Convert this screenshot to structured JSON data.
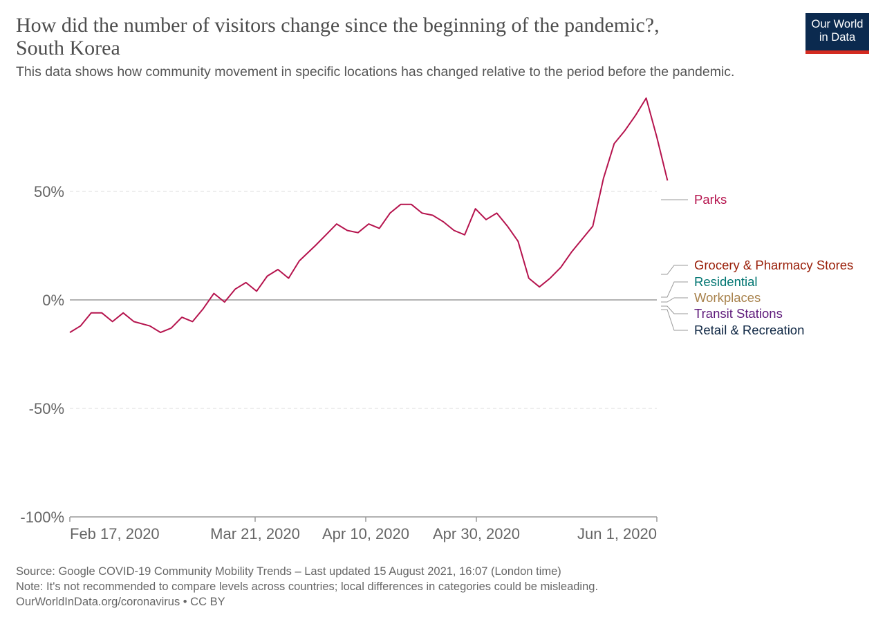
{
  "header": {
    "title": "How did the number of visitors change since the beginning of the pandemic?, South Korea",
    "subtitle": "This data shows how community movement in specific locations has changed relative to the period before the pandemic."
  },
  "logo": {
    "line1": "Our World",
    "line2": "in Data"
  },
  "footer": {
    "source": "Source: Google COVID-19 Community Mobility Trends – Last updated 15 August 2021, 16:07 (London time)",
    "note": "Note: It's not recommended to compare levels across countries; local differences in categories could be misleading.",
    "credit": "OurWorldInData.org/coronavirus • CC BY"
  },
  "chart_data": {
    "type": "line",
    "title": "How did the number of visitors change since the beginning of the pandemic?, South Korea",
    "xlabel": "",
    "ylabel": "",
    "x_range": [
      "2020-02-15",
      "2020-06-05"
    ],
    "ylim": [
      -100,
      100
    ],
    "y_ticks": [
      {
        "value": 50,
        "label": "50%"
      },
      {
        "value": 0,
        "label": "0%"
      },
      {
        "value": -50,
        "label": "-50%"
      },
      {
        "value": -100,
        "label": "-100%"
      }
    ],
    "x_ticks": [
      {
        "date": "2020-02-17",
        "label": "Feb 17, 2020"
      },
      {
        "date": "2020-03-21",
        "label": "Mar 21, 2020"
      },
      {
        "date": "2020-04-10",
        "label": "Apr 10, 2020"
      },
      {
        "date": "2020-04-30",
        "label": "Apr 30, 2020"
      },
      {
        "date": "2020-06-01",
        "label": "Jun 1, 2020"
      }
    ],
    "grid": "horizontal dashed",
    "legend": "right, end-of-line labels",
    "series": [
      {
        "name": "Parks",
        "color": "#b5134d",
        "points": [
          [
            "2020-02-15",
            -15
          ],
          [
            "2020-02-17",
            -12
          ],
          [
            "2020-02-19",
            -6
          ],
          [
            "2020-02-21",
            -6
          ],
          [
            "2020-02-23",
            -10
          ],
          [
            "2020-02-25",
            -6
          ],
          [
            "2020-02-27",
            -10
          ],
          [
            "2020-03-01",
            -12
          ],
          [
            "2020-03-03",
            -15
          ],
          [
            "2020-03-05",
            -13
          ],
          [
            "2020-03-07",
            -8
          ],
          [
            "2020-03-09",
            -10
          ],
          [
            "2020-03-11",
            -4
          ],
          [
            "2020-03-13",
            3
          ],
          [
            "2020-03-15",
            -1
          ],
          [
            "2020-03-17",
            5
          ],
          [
            "2020-03-19",
            8
          ],
          [
            "2020-03-21",
            4
          ],
          [
            "2020-03-23",
            11
          ],
          [
            "2020-03-25",
            14
          ],
          [
            "2020-03-27",
            10
          ],
          [
            "2020-03-29",
            18
          ],
          [
            "2020-04-01",
            25
          ],
          [
            "2020-04-03",
            30
          ],
          [
            "2020-04-05",
            35
          ],
          [
            "2020-04-07",
            32
          ],
          [
            "2020-04-09",
            31
          ],
          [
            "2020-04-11",
            35
          ],
          [
            "2020-04-13",
            33
          ],
          [
            "2020-04-15",
            40
          ],
          [
            "2020-04-17",
            44
          ],
          [
            "2020-04-19",
            44
          ],
          [
            "2020-04-21",
            40
          ],
          [
            "2020-04-23",
            39
          ],
          [
            "2020-04-25",
            36
          ],
          [
            "2020-04-27",
            32
          ],
          [
            "2020-04-29",
            30
          ],
          [
            "2020-05-01",
            42
          ],
          [
            "2020-05-03",
            37
          ],
          [
            "2020-05-05",
            40
          ],
          [
            "2020-05-07",
            34
          ],
          [
            "2020-05-09",
            27
          ],
          [
            "2020-05-11",
            10
          ],
          [
            "2020-05-13",
            6
          ],
          [
            "2020-05-15",
            10
          ],
          [
            "2020-05-17",
            15
          ],
          [
            "2020-05-19",
            22
          ],
          [
            "2020-05-21",
            28
          ],
          [
            "2020-05-23",
            34
          ],
          [
            "2020-05-25",
            56
          ],
          [
            "2020-05-27",
            72
          ],
          [
            "2020-05-29",
            78
          ],
          [
            "2020-05-31",
            85
          ],
          [
            "2020-06-02",
            93
          ],
          [
            "2020-06-04",
            75
          ],
          [
            "2020-06-06",
            55
          ]
        ]
      },
      {
        "name": "Grocery & Pharmacy Stores",
        "color": "#991e08",
        "points": []
      },
      {
        "name": "Residential",
        "color": "#007571",
        "points": []
      },
      {
        "name": "Workplaces",
        "color": "#a8824c",
        "points": []
      },
      {
        "name": "Transit Stations",
        "color": "#5e1a7a",
        "points": []
      },
      {
        "name": "Retail & Recreation",
        "color": "#0f2744",
        "points": []
      }
    ]
  }
}
